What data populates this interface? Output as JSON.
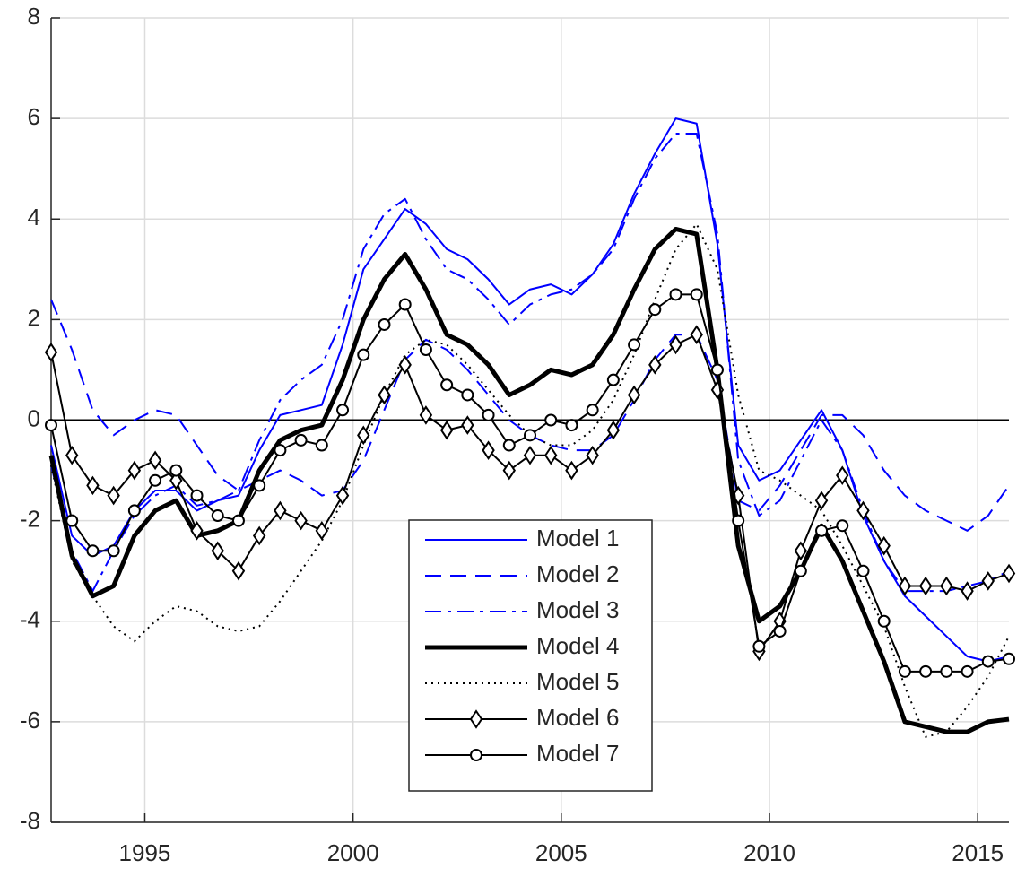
{
  "chart_data": {
    "type": "line",
    "x": [
      1992.75,
      1993.25,
      1993.75,
      1994.25,
      1994.75,
      1995.25,
      1995.75,
      1996.25,
      1996.75,
      1997.25,
      1997.75,
      1998.25,
      1998.75,
      1999.25,
      1999.75,
      2000.25,
      2000.75,
      2001.25,
      2001.75,
      2002.25,
      2002.75,
      2003.25,
      2003.75,
      2004.25,
      2004.75,
      2005.25,
      2005.75,
      2006.25,
      2006.75,
      2007.25,
      2007.75,
      2008.25,
      2008.75,
      2009.25,
      2009.75,
      2010.25,
      2010.75,
      2011.25,
      2011.75,
      2012.25,
      2012.75,
      2013.25,
      2013.75,
      2014.25,
      2014.75,
      2015.25,
      2015.75
    ],
    "series": [
      {
        "name": "Model 1",
        "color": "#0000ff",
        "line_style": "solid",
        "values": [
          -0.5,
          -2.3,
          -2.7,
          -2.5,
          -1.8,
          -1.4,
          -1.4,
          -1.8,
          -1.6,
          -1.5,
          -0.6,
          0.1,
          0.2,
          0.3,
          1.5,
          3.0,
          3.6,
          4.2,
          3.9,
          3.4,
          3.2,
          2.8,
          2.3,
          2.6,
          2.7,
          2.5,
          2.9,
          3.5,
          4.5,
          5.3,
          6.0,
          5.9,
          3.5,
          -0.5,
          -1.2,
          -1.0,
          -0.4,
          0.2,
          -0.6,
          -1.9,
          -2.8,
          -3.5,
          -3.9,
          -4.3,
          -4.7,
          -4.8,
          -4.7
        ]
      },
      {
        "name": "Model 2",
        "color": "#0000ff",
        "line_style": "dashed",
        "values": [
          2.4,
          1.4,
          0.2,
          -0.3,
          0.0,
          0.2,
          0.1,
          -0.5,
          -1.1,
          -1.4,
          -1.2,
          -1.0,
          -1.2,
          -1.5,
          -1.4,
          -0.8,
          0.2,
          1.2,
          1.6,
          1.4,
          1.0,
          0.5,
          0.0,
          -0.3,
          -0.5,
          -0.6,
          -0.6,
          -0.3,
          0.4,
          1.2,
          1.7,
          1.7,
          0.8,
          -1.6,
          -1.8,
          -1.3,
          -0.6,
          0.1,
          0.1,
          -0.3,
          -1.0,
          -1.5,
          -1.8,
          -2.0,
          -2.2,
          -1.9,
          -1.3
        ]
      },
      {
        "name": "Model 3",
        "color": "#0000ff",
        "line_style": "dashdot",
        "values": [
          -0.9,
          -2.6,
          -3.4,
          -2.6,
          -1.9,
          -1.5,
          -1.3,
          -1.7,
          -1.6,
          -1.4,
          -0.4,
          0.4,
          0.8,
          1.1,
          2.0,
          3.4,
          4.1,
          4.4,
          3.6,
          3.0,
          2.8,
          2.4,
          1.9,
          2.3,
          2.5,
          2.6,
          2.9,
          3.4,
          4.4,
          5.2,
          5.7,
          5.7,
          3.7,
          -0.8,
          -1.9,
          -1.6,
          -0.8,
          0.0,
          -0.6,
          -1.8,
          -2.8,
          -3.4,
          -3.4,
          -3.4,
          -3.3,
          -3.2,
          -3.0
        ]
      },
      {
        "name": "Model 4",
        "color": "#000000",
        "line_style": "thick",
        "values": [
          -0.7,
          -2.7,
          -3.5,
          -3.3,
          -2.3,
          -1.8,
          -1.6,
          -2.3,
          -2.2,
          -2.0,
          -1.0,
          -0.4,
          -0.2,
          -0.1,
          0.8,
          2.0,
          2.8,
          3.3,
          2.6,
          1.7,
          1.5,
          1.1,
          0.5,
          0.7,
          1.0,
          0.9,
          1.1,
          1.7,
          2.6,
          3.4,
          3.8,
          3.7,
          1.0,
          -2.5,
          -4.0,
          -3.7,
          -3.0,
          -2.1,
          -2.8,
          -3.8,
          -4.8,
          -6.0,
          -6.1,
          -6.2,
          -6.2,
          -6.0,
          -5.95
        ]
      },
      {
        "name": "Model 5",
        "color": "#000000",
        "line_style": "dotted",
        "values": [
          -0.9,
          -2.8,
          -3.5,
          -4.1,
          -4.4,
          -4.0,
          -3.7,
          -3.8,
          -4.1,
          -4.2,
          -4.1,
          -3.6,
          -3.0,
          -2.4,
          -1.6,
          -0.5,
          0.5,
          1.3,
          1.6,
          1.5,
          1.1,
          0.6,
          0.1,
          -0.3,
          -0.5,
          -0.5,
          -0.2,
          0.4,
          1.3,
          2.4,
          3.4,
          3.9,
          3.0,
          0.5,
          -1.0,
          -1.2,
          -1.5,
          -1.8,
          -2.5,
          -3.3,
          -4.1,
          -5.3,
          -6.3,
          -6.2,
          -5.7,
          -5.1,
          -4.3
        ]
      },
      {
        "name": "Model 6",
        "color": "#000000",
        "line_style": "solid",
        "marker": "diamond",
        "values": [
          1.35,
          -0.7,
          -1.3,
          -1.5,
          -1.0,
          -0.8,
          -1.2,
          -2.2,
          -2.6,
          -3.0,
          -2.3,
          -1.8,
          -2.0,
          -2.2,
          -1.5,
          -0.3,
          0.5,
          1.1,
          0.1,
          -0.2,
          -0.1,
          -0.6,
          -1.0,
          -0.7,
          -0.7,
          -1.0,
          -0.7,
          -0.2,
          0.5,
          1.1,
          1.5,
          1.7,
          0.6,
          -1.5,
          -4.6,
          -4.0,
          -2.6,
          -1.6,
          -1.1,
          -1.8,
          -2.5,
          -3.3,
          -3.3,
          -3.3,
          -3.4,
          -3.2,
          -3.05
        ]
      },
      {
        "name": "Model 7",
        "color": "#000000",
        "line_style": "solid",
        "marker": "circle",
        "values": [
          -0.1,
          -2.0,
          -2.6,
          -2.6,
          -1.8,
          -1.2,
          -1.0,
          -1.5,
          -1.9,
          -2.0,
          -1.3,
          -0.6,
          -0.4,
          -0.5,
          0.2,
          1.3,
          1.9,
          2.3,
          1.4,
          0.7,
          0.5,
          0.1,
          -0.5,
          -0.3,
          0.0,
          -0.1,
          0.2,
          0.8,
          1.5,
          2.2,
          2.5,
          2.5,
          1.0,
          -2.0,
          -4.5,
          -4.2,
          -3.0,
          -2.2,
          -2.1,
          -3.0,
          -4.0,
          -5.0,
          -5.0,
          -5.0,
          -5.0,
          -4.8,
          -4.75
        ]
      }
    ],
    "xlim": [
      1992.75,
      2015.75
    ],
    "xticks": [
      1995,
      2000,
      2005,
      2010,
      2015
    ],
    "ylim": [
      -8,
      8
    ],
    "yticks": [
      -8,
      -6,
      -4,
      -2,
      0,
      2,
      4,
      6,
      8
    ],
    "grid": true,
    "zero_line": true,
    "legend_position": "south"
  }
}
